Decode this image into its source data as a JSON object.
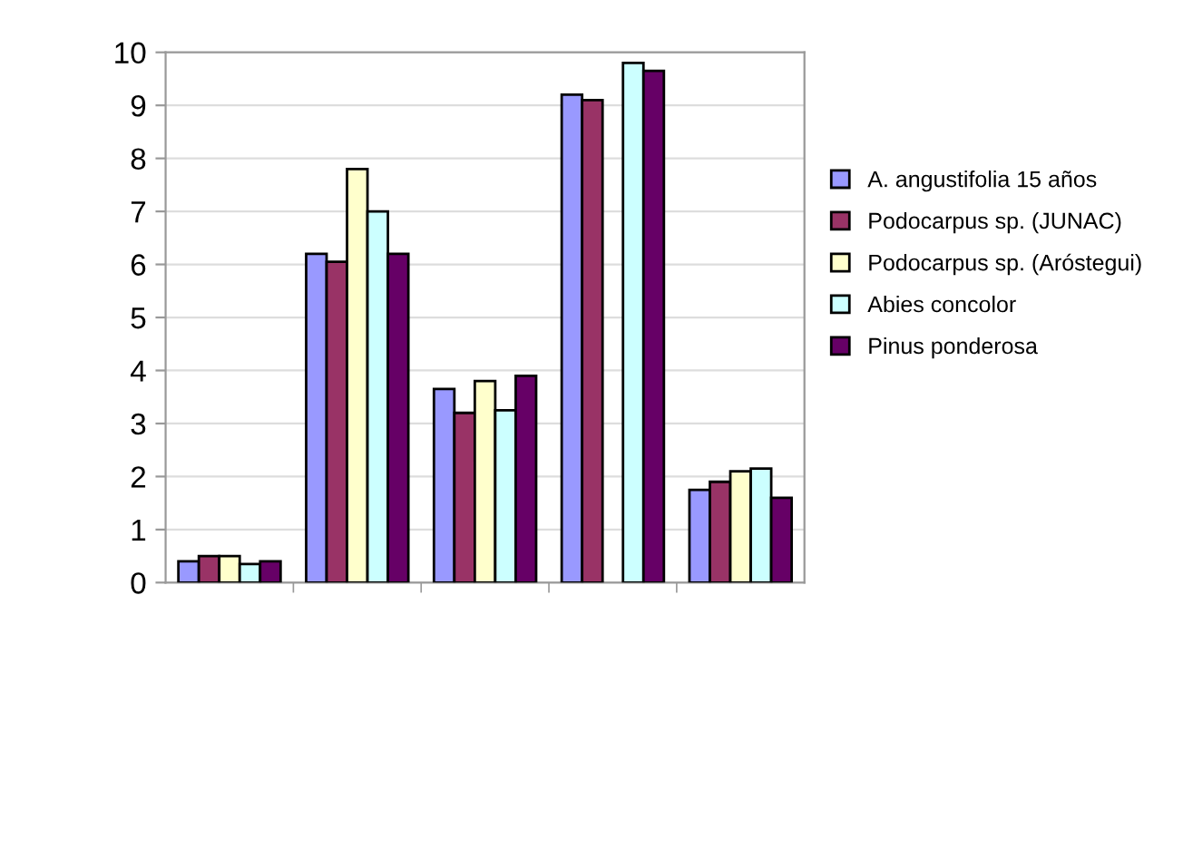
{
  "chart_data": {
    "type": "bar",
    "categories": [
      null,
      null,
      null,
      null,
      null
    ],
    "series": [
      {
        "name": "A. angustifolia 15 años",
        "color": "#9999ff",
        "values": [
          0.4,
          6.2,
          3.65,
          9.2,
          1.75
        ]
      },
      {
        "name": "Podocarpus sp. (JUNAC)",
        "color": "#993366",
        "values": [
          0.5,
          6.05,
          3.2,
          9.1,
          1.9
        ]
      },
      {
        "name": "Podocarpus sp. (Aróstegui)",
        "color": "#ffffcc",
        "values": [
          0.5,
          7.8,
          3.8,
          null,
          2.1
        ]
      },
      {
        "name": "Abies concolor",
        "color": "#ccffff",
        "values": [
          0.35,
          7.0,
          3.25,
          9.8,
          2.15
        ]
      },
      {
        "name": "Pinus ponderosa",
        "color": "#660066",
        "values": [
          0.4,
          6.2,
          3.9,
          9.65,
          1.6
        ]
      }
    ],
    "ylim": [
      0,
      10
    ],
    "yticks": [
      0,
      1,
      2,
      3,
      4,
      5,
      6,
      7,
      8,
      9,
      10
    ],
    "grid": "y",
    "legend": "right"
  }
}
